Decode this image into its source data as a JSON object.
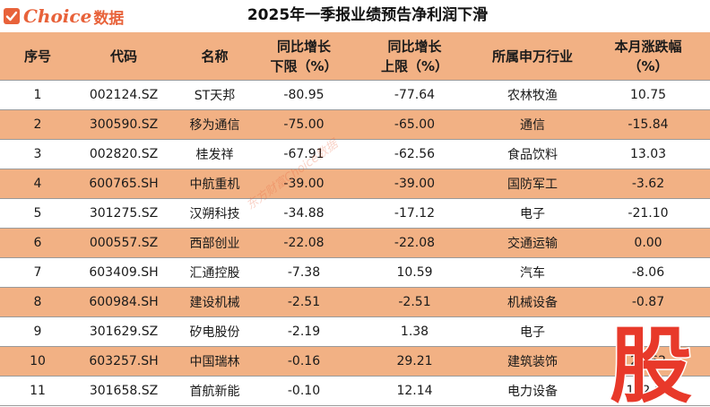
{
  "brand": {
    "name": "Choice",
    "suffix": "数据",
    "color": "#e8623a"
  },
  "title": "2025年一季报业绩预告净利润下滑",
  "watermark": "东方财富Choice数据",
  "stamp_char": "股",
  "colors": {
    "header_bg": "#f2b184",
    "alt_row_bg": "#f2b184",
    "stamp": "#e8392a"
  },
  "table": {
    "headers": [
      {
        "line1": "序号",
        "line2": ""
      },
      {
        "line1": "代码",
        "line2": ""
      },
      {
        "line1": "名称",
        "line2": ""
      },
      {
        "line1": "同比增长",
        "line2": "下限（%）"
      },
      {
        "line1": "同比增长",
        "line2": "上限（%）"
      },
      {
        "line1": "所属申万行业",
        "line2": ""
      },
      {
        "line1": "本月涨跌幅",
        "line2": "（%）"
      }
    ],
    "rows": [
      {
        "no": "1",
        "code": "002124.SZ",
        "name": "ST天邦",
        "low": "-80.95",
        "high": "-77.64",
        "industry": "农林牧渔",
        "change": "10.75"
      },
      {
        "no": "2",
        "code": "300590.SZ",
        "name": "移为通信",
        "low": "-75.00",
        "high": "-65.00",
        "industry": "通信",
        "change": "-15.84"
      },
      {
        "no": "3",
        "code": "002820.SZ",
        "name": "桂发祥",
        "low": "-67.91",
        "high": "-62.56",
        "industry": "食品饮料",
        "change": "13.03"
      },
      {
        "no": "4",
        "code": "600765.SH",
        "name": "中航重机",
        "low": "-39.00",
        "high": "-39.00",
        "industry": "国防军工",
        "change": "-3.62"
      },
      {
        "no": "5",
        "code": "301275.SZ",
        "name": "汉朔科技",
        "low": "-34.88",
        "high": "-17.12",
        "industry": "电子",
        "change": "-21.10"
      },
      {
        "no": "6",
        "code": "000557.SZ",
        "name": "西部创业",
        "low": "-22.08",
        "high": "-22.08",
        "industry": "交通运输",
        "change": "0.00"
      },
      {
        "no": "7",
        "code": "603409.SH",
        "name": "汇通控股",
        "low": "-7.38",
        "high": "10.59",
        "industry": "汽车",
        "change": "-8.06"
      },
      {
        "no": "8",
        "code": "600984.SH",
        "name": "建设机械",
        "low": "-2.51",
        "high": "-2.51",
        "industry": "机械设备",
        "change": "-0.87"
      },
      {
        "no": "9",
        "code": "301629.SZ",
        "name": "矽电股份",
        "low": "-2.19",
        "high": "1.38",
        "industry": "电子",
        "change": ""
      },
      {
        "no": "10",
        "code": "603257.SH",
        "name": "中国瑞林",
        "low": "-0.16",
        "high": "29.21",
        "industry": "建筑装饰",
        "change": "26.62"
      },
      {
        "no": "11",
        "code": "301658.SZ",
        "name": "首航新能",
        "low": "-0.10",
        "high": "12.14",
        "industry": "电力设备",
        "change": "142.63"
      }
    ]
  }
}
